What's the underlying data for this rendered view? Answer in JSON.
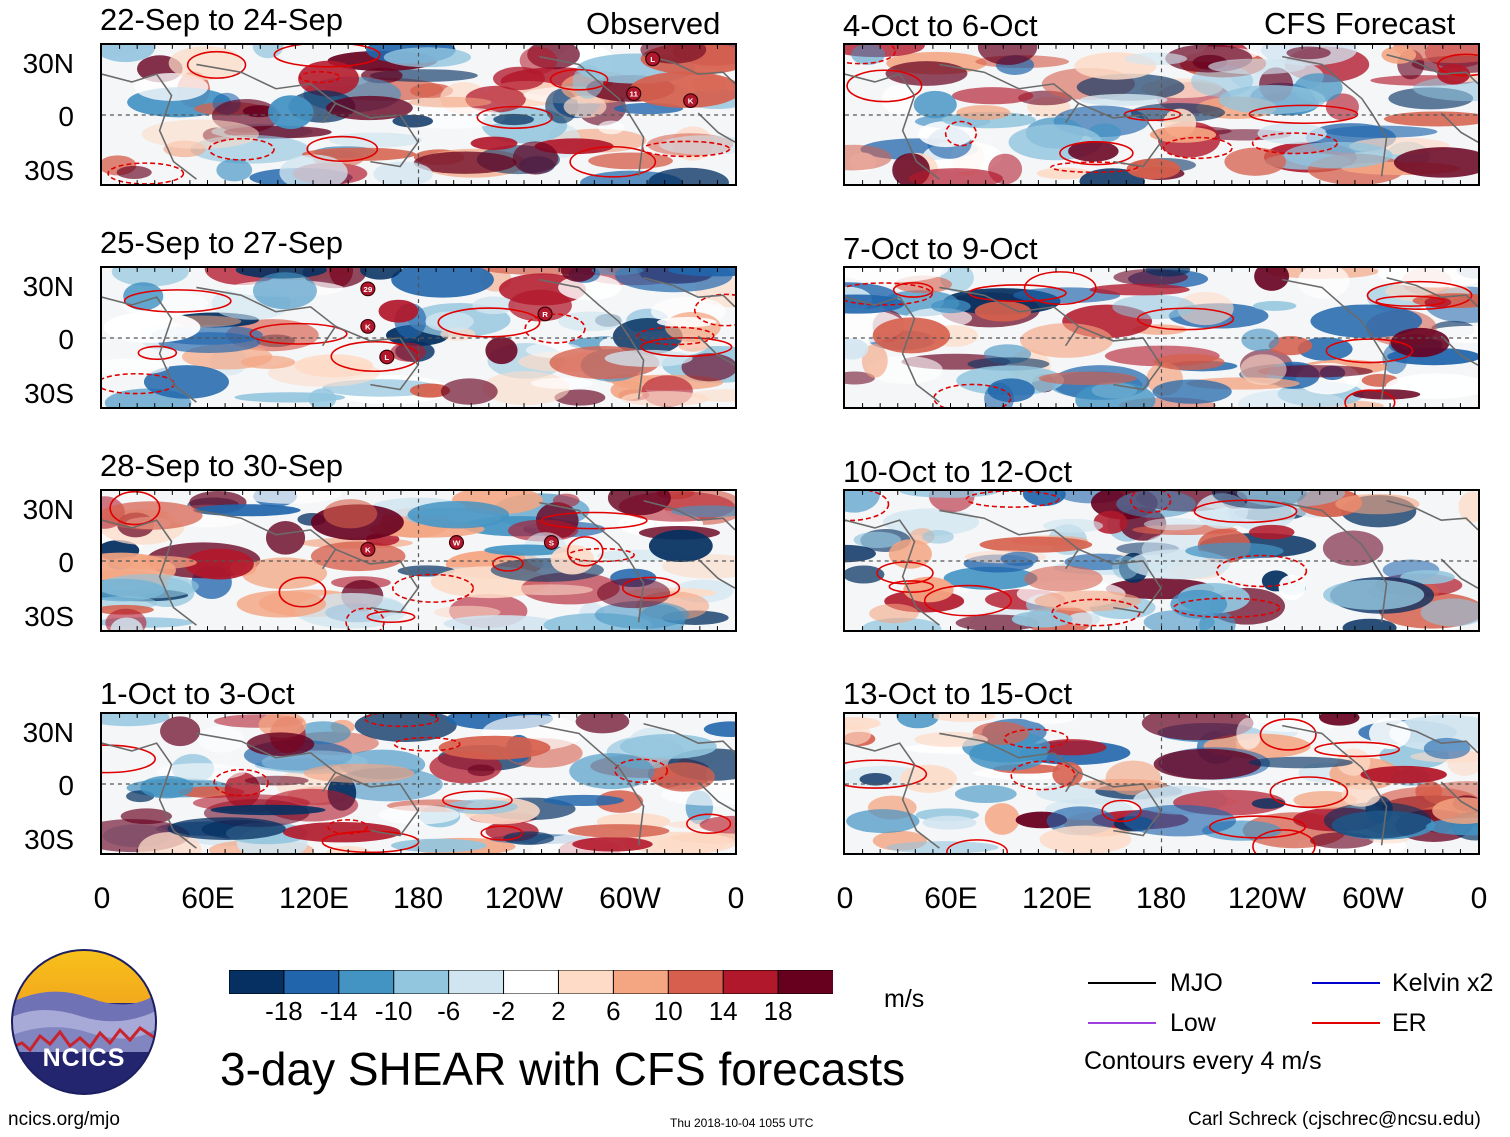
{
  "title": "3-day SHEAR with CFS forecasts",
  "column_labels": {
    "observed": "Observed",
    "forecast": "CFS Forecast"
  },
  "panels_left": [
    {
      "title": "22-Sep to 24-Sep",
      "storms": [
        "L",
        "11",
        "K"
      ]
    },
    {
      "title": "25-Sep to 27-Sep",
      "storms": [
        "29",
        "K",
        "L",
        "R"
      ]
    },
    {
      "title": "28-Sep to 30-Sep",
      "storms": [
        "K",
        "W",
        "S"
      ]
    },
    {
      "title": "1-Oct to 3-Oct",
      "storms": []
    }
  ],
  "panels_right": [
    {
      "title": "4-Oct to 6-Oct"
    },
    {
      "title": "7-Oct to 9-Oct"
    },
    {
      "title": "10-Oct to 12-Oct"
    },
    {
      "title": "13-Oct to 15-Oct"
    }
  ],
  "lat_labels": [
    "30N",
    "0",
    "30S"
  ],
  "lon_labels": [
    "0",
    "60E",
    "120E",
    "180",
    "120W",
    "60W",
    "0"
  ],
  "colorbar": {
    "labels": [
      "-18",
      "-14",
      "-10",
      "-6",
      "-2",
      "2",
      "6",
      "10",
      "14",
      "18"
    ],
    "colors": [
      "#053061",
      "#2166ac",
      "#4393c3",
      "#92c5de",
      "#d1e5f0",
      "#ffffff",
      "#fddbc7",
      "#f4a582",
      "#d6604d",
      "#b2182b",
      "#67001f"
    ],
    "units": "m/s"
  },
  "legend": {
    "items": [
      {
        "label": "MJO",
        "color": "#000000"
      },
      {
        "label": "Kelvin x2",
        "color": "#0000cc"
      },
      {
        "label": "Low",
        "color": "#a040e0"
      },
      {
        "label": "ER",
        "color": "#e00000"
      }
    ],
    "note": "Contours every 4 m/s"
  },
  "logo_text": "NCICS",
  "footer": {
    "url": "ncics.org/mjo",
    "timestamp": "Thu 2018-10-04 1055 UTC",
    "author": "Carl Schreck (cjschrec@ncsu.edu)"
  }
}
